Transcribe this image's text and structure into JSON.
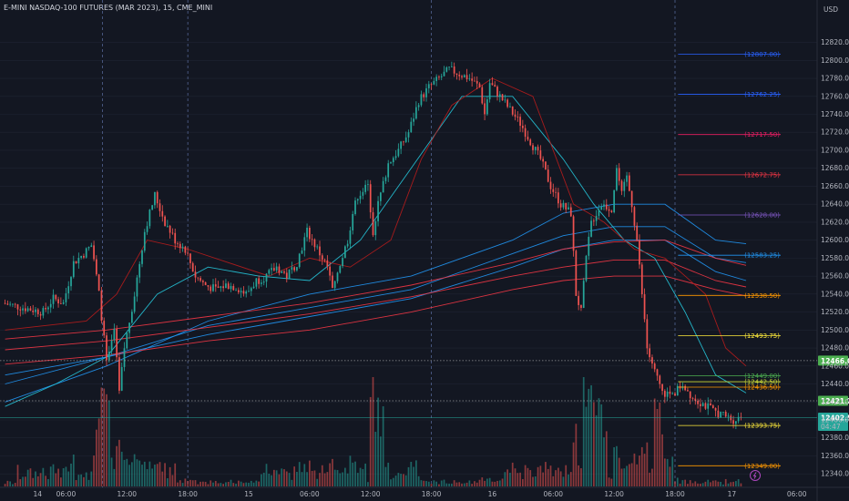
{
  "header": {
    "title": "E-MINI NASDAQ-100 FUTURES (MAR 2023), 15, CME_MINI",
    "currency": "USD"
  },
  "colors": {
    "bg": "#131722",
    "up": "#26a69a",
    "down": "#ef5350",
    "grid": "#1f2433",
    "axis": "#2a2e39"
  },
  "chart_data": {
    "type": "candlestick",
    "title": "E-MINI NASDAQ-100 FUTURES (MAR 2023), 15, CME_MINI",
    "ylim": [
      12325,
      12853
    ],
    "y_ticks": [
      12340,
      12360,
      12380,
      12400,
      12420,
      12440,
      12460,
      12480,
      12500,
      12520,
      12540,
      12560,
      12580,
      12600,
      12620,
      12640,
      12660,
      12680,
      12700,
      12720,
      12740,
      12760,
      12780,
      12800,
      12820
    ],
    "x_labels": [
      {
        "label": "14",
        "t": 3.2
      },
      {
        "label": "06:00",
        "t": 6
      },
      {
        "label": "12:00",
        "t": 12
      },
      {
        "label": "18:00",
        "t": 18
      },
      {
        "label": "15",
        "t": 24
      },
      {
        "label": "06:00",
        "t": 30
      },
      {
        "label": "12:00",
        "t": 36
      },
      {
        "label": "18:00",
        "t": 42
      },
      {
        "label": "16",
        "t": 48
      },
      {
        "label": "06:00",
        "t": 54
      },
      {
        "label": "12:00",
        "t": 60
      },
      {
        "label": "18:00",
        "t": 66
      },
      {
        "label": "17",
        "t": 71.6
      },
      {
        "label": "06:00",
        "t": 78
      }
    ],
    "session_breaks": [
      9.6,
      18,
      42,
      66
    ],
    "price_path": [
      [
        0,
        12530
      ],
      [
        2,
        12525
      ],
      [
        4,
        12520
      ],
      [
        5,
        12535
      ],
      [
        6,
        12530
      ],
      [
        7,
        12575
      ],
      [
        8,
        12585
      ],
      [
        8.8,
        12595
      ],
      [
        9.5,
        12540
      ],
      [
        10.3,
        12460
      ],
      [
        11,
        12500
      ],
      [
        11.5,
        12430
      ],
      [
        12,
        12480
      ],
      [
        13,
        12540
      ],
      [
        14,
        12610
      ],
      [
        15,
        12650
      ],
      [
        16,
        12620
      ],
      [
        17,
        12600
      ],
      [
        18,
        12590
      ],
      [
        19,
        12560
      ],
      [
        20,
        12550
      ],
      [
        21,
        12545
      ],
      [
        22,
        12550
      ],
      [
        23,
        12548
      ],
      [
        24,
        12540
      ],
      [
        25,
        12555
      ],
      [
        26,
        12560
      ],
      [
        27,
        12570
      ],
      [
        28,
        12560
      ],
      [
        29,
        12575
      ],
      [
        30,
        12610
      ],
      [
        31,
        12590
      ],
      [
        32,
        12570
      ],
      [
        32.6,
        12540
      ],
      [
        33,
        12565
      ],
      [
        34,
        12600
      ],
      [
        34.5,
        12630
      ],
      [
        35,
        12650
      ],
      [
        36,
        12660
      ],
      [
        36.5,
        12610
      ],
      [
        37,
        12640
      ],
      [
        38,
        12685
      ],
      [
        39,
        12700
      ],
      [
        40,
        12720
      ],
      [
        41,
        12755
      ],
      [
        42,
        12770
      ],
      [
        43,
        12780
      ],
      [
        44,
        12790
      ],
      [
        45,
        12785
      ],
      [
        46,
        12780
      ],
      [
        47,
        12770
      ],
      [
        47.5,
        12740
      ],
      [
        48,
        12775
      ],
      [
        49,
        12760
      ],
      [
        50,
        12745
      ],
      [
        51,
        12730
      ],
      [
        52,
        12710
      ],
      [
        53,
        12690
      ],
      [
        54,
        12660
      ],
      [
        55,
        12640
      ],
      [
        56,
        12630
      ],
      [
        56.5,
        12540
      ],
      [
        57,
        12520
      ],
      [
        57.5,
        12580
      ],
      [
        58,
        12620
      ],
      [
        59,
        12640
      ],
      [
        60,
        12635
      ],
      [
        60.5,
        12680
      ],
      [
        61,
        12650
      ],
      [
        61.5,
        12670
      ],
      [
        62,
        12640
      ],
      [
        62.5,
        12600
      ],
      [
        63,
        12540
      ],
      [
        63.5,
        12480
      ],
      [
        64,
        12460
      ],
      [
        65,
        12430
      ],
      [
        66,
        12428
      ],
      [
        67,
        12440
      ],
      [
        68,
        12425
      ],
      [
        69,
        12418
      ],
      [
        70,
        12410
      ],
      [
        71,
        12405
      ],
      [
        72,
        12400
      ],
      [
        72.6,
        12402.5
      ]
    ],
    "moving_averages": [
      {
        "color": "#2196f3",
        "points": [
          [
            0,
            12420
          ],
          [
            10,
            12460
          ],
          [
            20,
            12510
          ],
          [
            30,
            12540
          ],
          [
            40,
            12560
          ],
          [
            50,
            12600
          ],
          [
            55,
            12630
          ],
          [
            60,
            12640
          ],
          [
            65,
            12640
          ],
          [
            70,
            12600
          ],
          [
            73,
            12596
          ]
        ]
      },
      {
        "color": "#2196f3",
        "points": [
          [
            0,
            12440
          ],
          [
            10,
            12470
          ],
          [
            20,
            12505
          ],
          [
            30,
            12525
          ],
          [
            40,
            12545
          ],
          [
            50,
            12585
          ],
          [
            55,
            12605
          ],
          [
            60,
            12615
          ],
          [
            65,
            12615
          ],
          [
            70,
            12580
          ],
          [
            73,
            12575
          ]
        ]
      },
      {
        "color": "#2196f3",
        "points": [
          [
            0,
            12450
          ],
          [
            10,
            12470
          ],
          [
            20,
            12495
          ],
          [
            30,
            12515
          ],
          [
            40,
            12535
          ],
          [
            50,
            12570
          ],
          [
            55,
            12590
          ],
          [
            60,
            12600
          ],
          [
            65,
            12600
          ],
          [
            70,
            12565
          ],
          [
            73,
            12555
          ]
        ]
      },
      {
        "color": "#f23645",
        "points": [
          [
            0,
            12490
          ],
          [
            10,
            12500
          ],
          [
            20,
            12515
          ],
          [
            30,
            12530
          ],
          [
            40,
            12550
          ],
          [
            50,
            12575
          ],
          [
            55,
            12590
          ],
          [
            60,
            12598
          ],
          [
            65,
            12600
          ],
          [
            70,
            12580
          ],
          [
            73,
            12572
          ]
        ]
      },
      {
        "color": "#f23645",
        "points": [
          [
            0,
            12478
          ],
          [
            10,
            12488
          ],
          [
            20,
            12503
          ],
          [
            30,
            12518
          ],
          [
            40,
            12537
          ],
          [
            50,
            12560
          ],
          [
            55,
            12570
          ],
          [
            60,
            12578
          ],
          [
            65,
            12578
          ],
          [
            70,
            12555
          ],
          [
            73,
            12548
          ]
        ]
      },
      {
        "color": "#f23645",
        "points": [
          [
            0,
            12462
          ],
          [
            10,
            12472
          ],
          [
            20,
            12488
          ],
          [
            30,
            12500
          ],
          [
            40,
            12520
          ],
          [
            50,
            12545
          ],
          [
            55,
            12555
          ],
          [
            60,
            12560
          ],
          [
            65,
            12560
          ],
          [
            70,
            12545
          ],
          [
            73,
            12538
          ]
        ]
      },
      {
        "color": "#26c6da",
        "points": [
          [
            0,
            12415
          ],
          [
            5,
            12440
          ],
          [
            10,
            12470
          ],
          [
            15,
            12540
          ],
          [
            20,
            12570
          ],
          [
            25,
            12560
          ],
          [
            30,
            12555
          ],
          [
            35,
            12600
          ],
          [
            40,
            12680
          ],
          [
            45,
            12760
          ],
          [
            50,
            12760
          ],
          [
            55,
            12690
          ],
          [
            58,
            12640
          ],
          [
            61,
            12600
          ],
          [
            64,
            12580
          ],
          [
            67,
            12520
          ],
          [
            70,
            12450
          ],
          [
            73,
            12430
          ]
        ]
      },
      {
        "color": "#b71c1c",
        "points": [
          [
            0,
            12500
          ],
          [
            8,
            12510
          ],
          [
            11,
            12540
          ],
          [
            14,
            12600
          ],
          [
            18,
            12590
          ],
          [
            22,
            12575
          ],
          [
            26,
            12560
          ],
          [
            30,
            12580
          ],
          [
            34,
            12570
          ],
          [
            38,
            12600
          ],
          [
            41,
            12690
          ],
          [
            44,
            12750
          ],
          [
            48,
            12780
          ],
          [
            52,
            12760
          ],
          [
            56,
            12640
          ],
          [
            59,
            12620
          ],
          [
            62,
            12590
          ],
          [
            65,
            12580
          ],
          [
            67,
            12560
          ],
          [
            69,
            12540
          ],
          [
            71,
            12480
          ],
          [
            73,
            12460
          ]
        ]
      }
    ],
    "levels": [
      {
        "label": "(12807.00)",
        "value": 12807.0,
        "color": "#2962ff"
      },
      {
        "label": "(12762.25)",
        "value": 12762.25,
        "color": "#2962ff"
      },
      {
        "label": "(12717.50)",
        "value": 12717.5,
        "color": "#e91e63"
      },
      {
        "label": "(12672.75)",
        "value": 12672.75,
        "color": "#f23645"
      },
      {
        "label": "(12628.00)",
        "value": 12628.0,
        "color": "#7e57c2"
      },
      {
        "label": "(12583.25)",
        "value": 12583.25,
        "color": "#2196f3"
      },
      {
        "label": "(12538.50)",
        "value": 12538.5,
        "color": "#ff9800"
      },
      {
        "label": "(12493.75)",
        "value": 12493.75,
        "color": "#ffeb3b"
      },
      {
        "label": "(12449.00)",
        "value": 12449.0,
        "color": "#4caf50"
      },
      {
        "label": "(12442.50)",
        "value": 12442.5,
        "color": "#cddc39"
      },
      {
        "label": "(12436.50)",
        "value": 12436.5,
        "color": "#ff9800"
      },
      {
        "label": "(12393.75)",
        "value": 12393.75,
        "color": "#ffeb3b"
      },
      {
        "label": "(12349.00)",
        "value": 12349.0,
        "color": "#ff9800"
      }
    ],
    "price_tags": [
      {
        "label": "12466.00",
        "value": 12466.0,
        "color": "#4caf50",
        "line": "dotted"
      },
      {
        "label": "12421.25",
        "value": 12421.25,
        "color": "#4caf50",
        "line": "dotted"
      },
      {
        "label": "12402.50",
        "sub": "04:47",
        "value": 12402.5,
        "color": "#26a69a",
        "line": "solid"
      }
    ]
  }
}
